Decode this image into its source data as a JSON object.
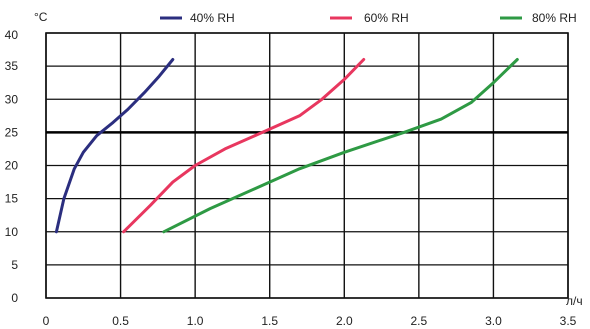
{
  "chart_data": {
    "type": "line",
    "title": "",
    "ylabel": "°C",
    "xlabel": "л/ч",
    "xlim": [
      0,
      3.5
    ],
    "ylim": [
      0,
      40
    ],
    "x_ticks": [
      "0",
      "0.5",
      "1.0",
      "1.5",
      "2.0",
      "2.5",
      "3.0",
      "3.5"
    ],
    "y_ticks": [
      "0",
      "5",
      "10",
      "15",
      "20",
      "25",
      "30",
      "35",
      "40"
    ],
    "grid": true,
    "reference_line": {
      "y": 25
    },
    "legend_position": "top",
    "series": [
      {
        "name": "40% RH",
        "color": "#2b2e7f",
        "x": [
          0.07,
          0.12,
          0.19,
          0.25,
          0.34,
          0.45,
          0.55,
          0.66,
          0.76,
          0.85
        ],
        "y": [
          10,
          15,
          19.5,
          22,
          24.5,
          26.5,
          28.5,
          31,
          33.5,
          36
        ]
      },
      {
        "name": "60% RH",
        "color": "#e8375f",
        "x": [
          0.52,
          0.7,
          0.85,
          1.0,
          1.2,
          1.45,
          1.7,
          1.85,
          2.0,
          2.13
        ],
        "y": [
          10,
          14,
          17.5,
          20,
          22.5,
          25,
          27.5,
          30,
          33,
          36
        ]
      },
      {
        "name": "80% RH",
        "color": "#2e9a44",
        "x": [
          0.79,
          1.1,
          1.4,
          1.7,
          2.0,
          2.4,
          2.65,
          2.85,
          3.0,
          3.16
        ],
        "y": [
          10,
          13.5,
          16.5,
          19.5,
          22,
          25,
          27,
          29.5,
          32.5,
          36
        ]
      }
    ]
  }
}
